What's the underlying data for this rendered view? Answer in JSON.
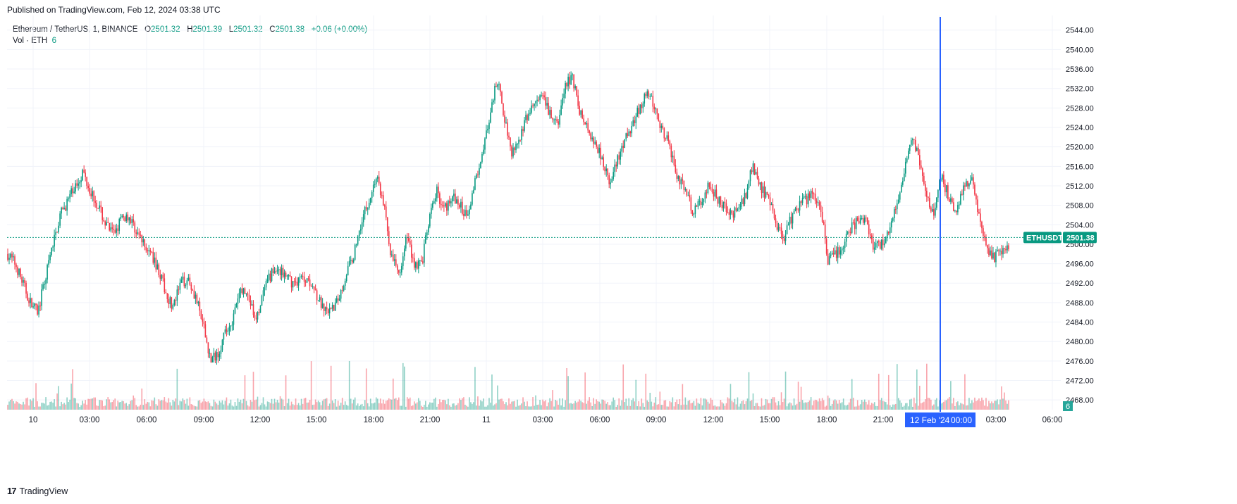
{
  "header": {
    "published": "Published on TradingView.com, Feb 12, 2024 03:38 UTC"
  },
  "legend": {
    "symbol_line": "Ethereum / TetherUS, 1, BINANCE",
    "open_label": "O",
    "open": "2501.32",
    "high_label": "H",
    "high": "2501.39",
    "low_label": "L",
    "low": "2501.32",
    "close_label": "C",
    "close": "2501.38",
    "change": "+0.06 (+0.00%)",
    "vol_label": "Vol · ETH",
    "vol_value": "6"
  },
  "price_tag": {
    "symbol": "ETHUSDT",
    "price": "2501.38"
  },
  "volume_tag": "6",
  "crosshair_label": {
    "date": "12 Feb '24",
    "time": "00:00"
  },
  "footer": {
    "brand": "TradingView"
  },
  "colors": {
    "up": "#089981",
    "down": "#f23645",
    "crosshair": "#2962ff",
    "grid": "#f0f3fa"
  },
  "chart_data": {
    "type": "candlestick",
    "y_axis_ticks": [
      2468,
      2472,
      2476,
      2480,
      2484,
      2488,
      2492,
      2496,
      2500,
      2504,
      2508,
      2512,
      2516,
      2520,
      2524,
      2528,
      2532,
      2536,
      2540,
      2544
    ],
    "y_axis_labels": [
      "2468.00",
      "2472.00",
      "2476.00",
      "2480.00",
      "2484.00",
      "2488.00",
      "2492.00",
      "2496.00",
      "2500.00",
      "2504.00",
      "2508.00",
      "2512.00",
      "2516.00",
      "2520.00",
      "2524.00",
      "2528.00",
      "2532.00",
      "2536.00",
      "2540.00",
      "2544.00"
    ],
    "ylim": [
      2466,
      2547
    ],
    "x_axis_labels": [
      "10",
      "03:00",
      "06:00",
      "09:00",
      "12:00",
      "15:00",
      "18:00",
      "21:00",
      "11",
      "03:00",
      "06:00",
      "09:00",
      "12:00",
      "15:00",
      "18:00",
      "21:00",
      "12 Feb '24",
      "03:00",
      "06:00"
    ],
    "price_path": [
      [
        0,
        2498
      ],
      [
        1,
        2496
      ],
      [
        2,
        2492
      ],
      [
        3,
        2488
      ],
      [
        4,
        2486
      ],
      [
        5,
        2493
      ],
      [
        6,
        2500
      ],
      [
        7,
        2506
      ],
      [
        8,
        2509
      ],
      [
        9,
        2512
      ],
      [
        10,
        2515
      ],
      [
        11,
        2511
      ],
      [
        12,
        2508
      ],
      [
        13,
        2504
      ],
      [
        14,
        2502
      ],
      [
        15,
        2505
      ],
      [
        16,
        2506
      ],
      [
        17,
        2503
      ],
      [
        18,
        2500
      ],
      [
        19,
        2498
      ],
      [
        20,
        2495
      ],
      [
        21,
        2490
      ],
      [
        22,
        2487
      ],
      [
        23,
        2492
      ],
      [
        24,
        2493
      ],
      [
        25,
        2489
      ],
      [
        26,
        2483
      ],
      [
        27,
        2476
      ],
      [
        28,
        2478
      ],
      [
        29,
        2482
      ],
      [
        30,
        2485
      ],
      [
        31,
        2491
      ],
      [
        32,
        2489
      ],
      [
        33,
        2484
      ],
      [
        34,
        2490
      ],
      [
        35,
        2494
      ],
      [
        36,
        2495
      ],
      [
        37,
        2493
      ],
      [
        38,
        2492
      ],
      [
        39,
        2493
      ],
      [
        40,
        2493
      ],
      [
        41,
        2490
      ],
      [
        42,
        2486
      ],
      [
        43,
        2486
      ],
      [
        44,
        2489
      ],
      [
        45,
        2494
      ],
      [
        46,
        2498
      ],
      [
        47,
        2505
      ],
      [
        48,
        2509
      ],
      [
        49,
        2514
      ],
      [
        50,
        2508
      ],
      [
        51,
        2497
      ],
      [
        52,
        2494
      ],
      [
        53,
        2502
      ],
      [
        54,
        2496
      ],
      [
        55,
        2496
      ],
      [
        56,
        2505
      ],
      [
        57,
        2511
      ],
      [
        58,
        2507
      ],
      [
        59,
        2510
      ],
      [
        60,
        2508
      ],
      [
        61,
        2506
      ],
      [
        62,
        2512
      ],
      [
        63,
        2519
      ],
      [
        64,
        2525
      ],
      [
        65,
        2534
      ],
      [
        66,
        2526
      ],
      [
        67,
        2519
      ],
      [
        68,
        2522
      ],
      [
        69,
        2526
      ],
      [
        70,
        2529
      ],
      [
        71,
        2530
      ],
      [
        72,
        2527
      ],
      [
        73,
        2524
      ],
      [
        74,
        2532
      ],
      [
        75,
        2535
      ],
      [
        76,
        2527
      ],
      [
        77,
        2524
      ],
      [
        78,
        2521
      ],
      [
        79,
        2518
      ],
      [
        80,
        2512
      ],
      [
        81,
        2517
      ],
      [
        82,
        2521
      ],
      [
        83,
        2525
      ],
      [
        84,
        2528
      ],
      [
        85,
        2531
      ],
      [
        86,
        2528
      ],
      [
        87,
        2523
      ],
      [
        88,
        2520
      ],
      [
        89,
        2514
      ],
      [
        90,
        2511
      ],
      [
        91,
        2507
      ],
      [
        92,
        2508
      ],
      [
        93,
        2512
      ],
      [
        94,
        2510
      ],
      [
        95,
        2508
      ],
      [
        96,
        2506
      ],
      [
        97,
        2507
      ],
      [
        98,
        2510
      ],
      [
        99,
        2516
      ],
      [
        100,
        2512
      ],
      [
        101,
        2509
      ],
      [
        102,
        2505
      ],
      [
        103,
        2501
      ],
      [
        104,
        2505
      ],
      [
        105,
        2508
      ],
      [
        106,
        2509
      ],
      [
        107,
        2511
      ],
      [
        108,
        2508
      ],
      [
        109,
        2496
      ],
      [
        110,
        2498
      ],
      [
        111,
        2500
      ],
      [
        112,
        2503
      ],
      [
        113,
        2505
      ],
      [
        114,
        2505
      ],
      [
        115,
        2500
      ],
      [
        116,
        2500
      ],
      [
        117,
        2502
      ],
      [
        118,
        2507
      ],
      [
        119,
        2514
      ],
      [
        120,
        2522
      ],
      [
        121,
        2518
      ],
      [
        122,
        2510
      ],
      [
        123,
        2506
      ],
      [
        124,
        2514
      ],
      [
        125,
        2510
      ],
      [
        126,
        2507
      ],
      [
        127,
        2511
      ],
      [
        128,
        2514
      ],
      [
        129,
        2506
      ],
      [
        130,
        2499
      ],
      [
        131,
        2497
      ],
      [
        132,
        2499
      ],
      [
        133,
        2500
      ]
    ],
    "volume_note": "volume histogram shown beneath price; latest bar 6 ETH"
  }
}
